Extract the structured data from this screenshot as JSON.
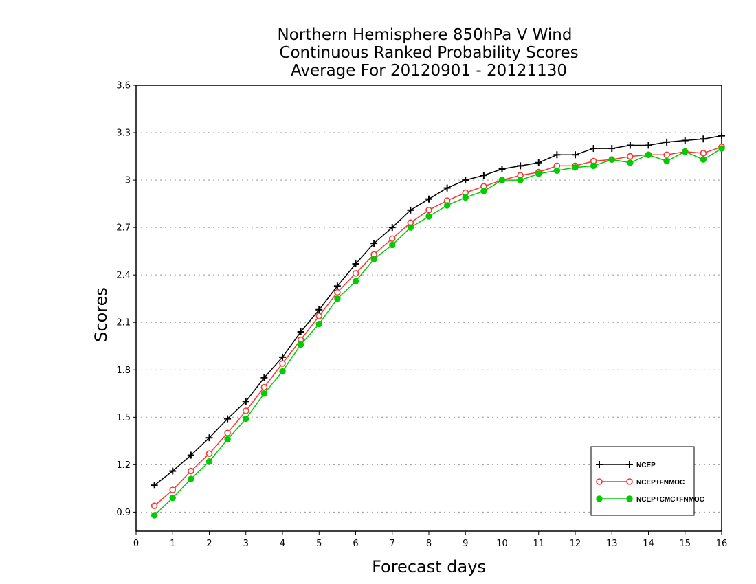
{
  "chart_data": {
    "type": "line",
    "title": [
      "Northern Hemisphere 850hPa V Wind",
      "Continuous Ranked Probability Scores",
      "Average For 20120901 - 20121130"
    ],
    "xlabel": "Forecast days",
    "ylabel": "Scores",
    "xlim": [
      0,
      16
    ],
    "ylim": [
      0.78,
      3.6
    ],
    "xticks": [
      "0",
      "1",
      "2",
      "3",
      "4",
      "5",
      "6",
      "7",
      "8",
      "9",
      "10",
      "11",
      "12",
      "13",
      "14",
      "15",
      "16"
    ],
    "yticks": [
      "0.9",
      "1.2",
      "1.5",
      "1.8",
      "2.1",
      "2.4",
      "2.7",
      "3",
      "3.3",
      "3.6"
    ],
    "grid": "horizontal-dotted",
    "legend_position": "bottom-right",
    "x": [
      0.5,
      1,
      1.5,
      2,
      2.5,
      3,
      3.5,
      4,
      4.5,
      5,
      5.5,
      6,
      6.5,
      7,
      7.5,
      8,
      8.5,
      9,
      9.5,
      10,
      10.5,
      11,
      11.5,
      12,
      12.5,
      13,
      13.5,
      14,
      14.5,
      15,
      15.5,
      16
    ],
    "series": [
      {
        "name": "NCEP",
        "color": "#000000",
        "marker": "plus",
        "values": [
          1.07,
          1.16,
          1.26,
          1.37,
          1.49,
          1.6,
          1.75,
          1.88,
          2.04,
          2.18,
          2.33,
          2.47,
          2.6,
          2.7,
          2.81,
          2.88,
          2.95,
          3.0,
          3.03,
          3.07,
          3.09,
          3.11,
          3.16,
          3.16,
          3.2,
          3.2,
          3.22,
          3.22,
          3.24,
          3.25,
          3.26,
          3.28
        ]
      },
      {
        "name": "NCEP+FNMOC",
        "color": "#ff3333",
        "marker": "open-circle",
        "values": [
          0.94,
          1.04,
          1.16,
          1.27,
          1.4,
          1.54,
          1.69,
          1.84,
          1.99,
          2.14,
          2.29,
          2.41,
          2.53,
          2.63,
          2.73,
          2.81,
          2.87,
          2.92,
          2.96,
          3.0,
          3.03,
          3.05,
          3.09,
          3.09,
          3.12,
          3.13,
          3.15,
          3.16,
          3.16,
          3.18,
          3.17,
          3.21
        ]
      },
      {
        "name": "NCEP+CMC+FNMOC",
        "color": "#00cc00",
        "marker": "filled-circle",
        "values": [
          0.88,
          0.99,
          1.11,
          1.22,
          1.36,
          1.49,
          1.65,
          1.79,
          1.96,
          2.09,
          2.25,
          2.36,
          2.5,
          2.59,
          2.7,
          2.77,
          2.84,
          2.89,
          2.93,
          3.0,
          3.0,
          3.04,
          3.06,
          3.08,
          3.09,
          3.13,
          3.11,
          3.16,
          3.12,
          3.18,
          3.13,
          3.2
        ]
      }
    ]
  }
}
